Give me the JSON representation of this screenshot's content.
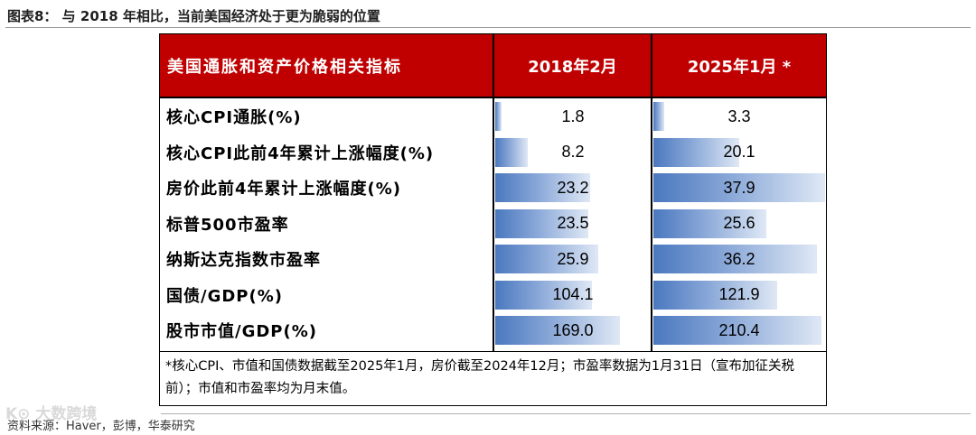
{
  "figure": {
    "title": "图表8：  与 2018 年相比，当前美国经济处于更为脆弱的位置",
    "source": "资料来源：Haver，彭博，华泰研究",
    "watermark": "K⊙ 大数跨境"
  },
  "table": {
    "headers": [
      "美国通胀和资产价格相关指标",
      "2018年2月",
      "2025年1月 *"
    ],
    "rows": [
      {
        "label": "核心CPI通胀(%)",
        "v2018": "1.8",
        "v2025": "3.3",
        "f2018": 0.04,
        "f2025": 0.065
      },
      {
        "label": "核心CPI此前4年累计上涨幅度(%)",
        "v2018": "8.2",
        "v2025": "20.1",
        "f2018": 0.21,
        "f2025": 0.5
      },
      {
        "label": "房价此前4年累计上涨幅度(%)",
        "v2018": "23.2",
        "v2025": "37.9",
        "f2018": 0.61,
        "f2025": 1.0
      },
      {
        "label": "标普500市盈率",
        "v2018": "23.5",
        "v2025": "25.6",
        "f2018": 0.6,
        "f2025": 0.66
      },
      {
        "label": "纳斯达克指数市盈率",
        "v2018": "25.9",
        "v2025": "36.2",
        "f2018": 0.66,
        "f2025": 0.95
      },
      {
        "label": "国债/GDP(%)",
        "v2018": "104.1",
        "v2025": "121.9",
        "f2018": 0.62,
        "f2025": 0.72
      },
      {
        "label": "股市市值/GDP(%)",
        "v2018": "169.0",
        "v2025": "210.4",
        "f2018": 0.8,
        "f2025": 0.98
      }
    ],
    "note": "*核心CPI、市值和国债数据截至2025年1月，房价截至2024年12月；市盈率数据为1月31日（宣布加征关税前）；市值和市盈率均为月末值。"
  },
  "colors": {
    "header_bg": "#c00000",
    "bar_start": "#4a78bf",
    "bar_end": "#dfe8f5"
  }
}
